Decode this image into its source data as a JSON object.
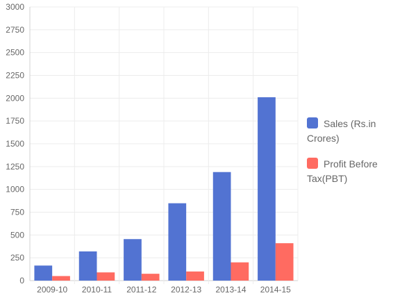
{
  "chart_data": {
    "type": "bar",
    "categories": [
      "2009-10",
      "2010-11",
      "2011-12",
      "2012-13",
      "2013-14",
      "2014-15"
    ],
    "series": [
      {
        "name": "Sales (Rs.in Crores)",
        "color": "#5273d2",
        "values": [
          165,
          320,
          455,
          848,
          1190,
          2010
        ]
      },
      {
        "name": "Profit Before Tax(PBT)",
        "color": "#ff6b61",
        "values": [
          50,
          90,
          75,
          100,
          200,
          410
        ]
      }
    ],
    "ylim": [
      0,
      3000
    ],
    "yticks": [
      0,
      250,
      500,
      750,
      1000,
      1250,
      1500,
      1750,
      2000,
      2250,
      2500,
      2750,
      3000
    ],
    "grid": true,
    "legend_position": "right",
    "title": "",
    "xlabel": "",
    "ylabel": ""
  }
}
